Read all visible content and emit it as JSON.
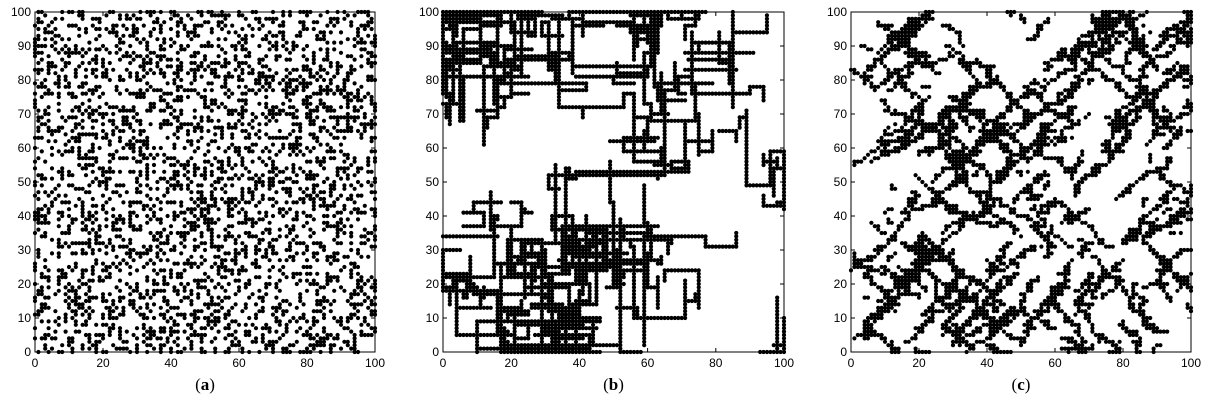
{
  "figure": {
    "dot_color": "#000000",
    "axis_color": "#000000",
    "background": "#ffffff"
  },
  "chart_data": [
    {
      "type": "scatter",
      "panel_label": "a",
      "pattern": "random",
      "xlim": [
        0,
        100
      ],
      "ylim": [
        0,
        100
      ],
      "x_ticks": [
        0,
        20,
        40,
        60,
        80,
        100
      ],
      "y_ticks": [
        0,
        10,
        20,
        30,
        40,
        50,
        60,
        70,
        80,
        90,
        100
      ],
      "grid": false,
      "density": 0.3,
      "points": []
    },
    {
      "type": "scatter",
      "panel_label": "b",
      "pattern": "branching",
      "xlim": [
        0,
        100
      ],
      "ylim": [
        0,
        100
      ],
      "x_ticks": [
        0,
        20,
        40,
        60,
        80,
        100
      ],
      "y_ticks": [
        0,
        10,
        20,
        30,
        40,
        50,
        60,
        70,
        80,
        90,
        100
      ],
      "grid": false,
      "density": 0.3,
      "points": []
    },
    {
      "type": "scatter",
      "panel_label": "c",
      "pattern": "clusters",
      "xlim": [
        0,
        100
      ],
      "ylim": [
        0,
        100
      ],
      "x_ticks": [
        0,
        20,
        40,
        60,
        80,
        100
      ],
      "y_ticks": [
        0,
        10,
        20,
        30,
        40,
        50,
        60,
        70,
        80,
        90,
        100
      ],
      "grid": false,
      "density": 0.3,
      "points": []
    }
  ]
}
